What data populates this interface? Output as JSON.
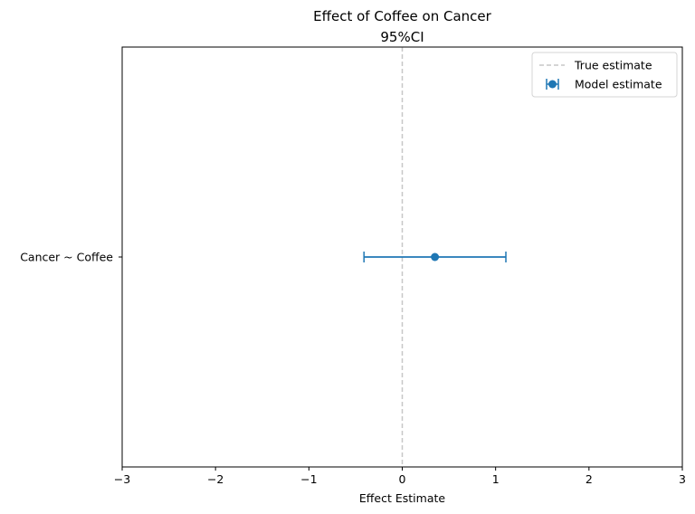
{
  "chart_data": {
    "type": "errorbar",
    "title": "Effect of Coffee on Cancer",
    "subtitle": "95%CI",
    "xlabel": "Effect Estimate",
    "ylabel": "",
    "xlim": [
      -3,
      3
    ],
    "xticks": [
      -3,
      -2,
      -1,
      0,
      1,
      2,
      3
    ],
    "xtick_labels": [
      "−3",
      "−2",
      "−1",
      "0",
      "1",
      "2",
      "3"
    ],
    "categories": [
      "Cancer ~ Coffee"
    ],
    "series": [
      {
        "name": "Model estimate",
        "estimates": [
          0.35
        ],
        "ci_lower": [
          -0.41
        ],
        "ci_upper": [
          1.11
        ],
        "color": "#1f77b4"
      }
    ],
    "reference_line": {
      "name": "True estimate",
      "x": 0,
      "color": "#c7c7c7",
      "style": "dashed"
    },
    "legend": {
      "position": "top-right",
      "entries": [
        "True estimate",
        "Model estimate"
      ]
    },
    "grid": false
  }
}
